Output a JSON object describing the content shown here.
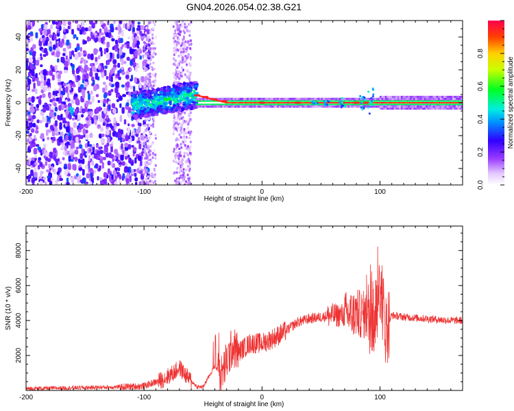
{
  "figure_title": "GN04.2026.054.02.38.G21",
  "chart_data": [
    {
      "type": "heatmap",
      "title": "GN04.2026.054.02.38.G21",
      "xlabel": "Height of straight line (km)",
      "ylabel": "Frequency (Hz)",
      "xlim": [
        -200,
        170
      ],
      "ylim": [
        -50,
        50
      ],
      "xticks": [
        -200,
        -100,
        0,
        100
      ],
      "yticks": [
        -40,
        -20,
        0,
        20,
        40
      ],
      "colorbar": {
        "label": "Normalized spectral amplitude",
        "range": [
          0,
          1
        ],
        "ticks": [
          0.0,
          0.2,
          0.4,
          0.6,
          0.8
        ]
      },
      "features": [
        {
          "name": "scattered noise",
          "x_range": [
            -200,
            -95
          ],
          "y_range": [
            -50,
            50
          ]
        },
        {
          "name": "noise band",
          "x_range": [
            -75,
            -60
          ],
          "y_range": [
            -50,
            50
          ]
        },
        {
          "name": "rising ridge",
          "x_range": [
            -110,
            -55
          ],
          "freq_start": -2,
          "freq_end": 5
        },
        {
          "name": "stable carrier",
          "x_range": [
            -55,
            170
          ],
          "freq": 0
        }
      ]
    },
    {
      "type": "line",
      "xlabel": "Height of straight line (km)",
      "ylabel": "SNR (10 * v/v)",
      "xlim": [
        -200,
        170
      ],
      "ylim": [
        0,
        9400
      ],
      "xticks": [
        -200,
        -100,
        0,
        100
      ],
      "yticks": [
        2000,
        4000,
        6000,
        8000
      ],
      "series": [
        {
          "name": "SNR",
          "color": "#ee3333",
          "x": [
            -200,
            -120,
            -100,
            -85,
            -75,
            -70,
            -65,
            -55,
            -50,
            -40,
            -35,
            -25,
            -20,
            -10,
            0,
            10,
            20,
            30,
            40,
            50,
            60,
            70,
            80,
            88,
            95,
            100,
            105,
            110,
            120,
            140,
            160,
            170
          ],
          "y": [
            100,
            200,
            250,
            600,
            1000,
            1300,
            900,
            200,
            200,
            1400,
            800,
            2500,
            2200,
            2700,
            2700,
            3000,
            3400,
            3900,
            4100,
            4200,
            4300,
            4300,
            4400,
            4300,
            4000,
            6000,
            3500,
            4300,
            4200,
            4100,
            4000,
            4000
          ]
        }
      ]
    }
  ]
}
